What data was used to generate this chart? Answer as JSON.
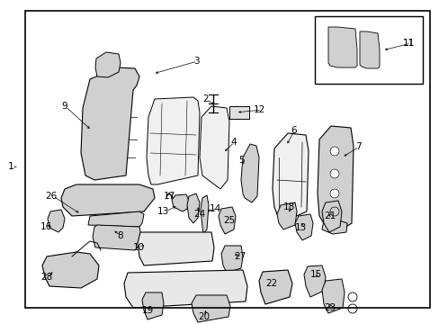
{
  "background_color": "#ffffff",
  "border_color": "#000000",
  "text_color": "#000000",
  "figure_width": 4.89,
  "figure_height": 3.6,
  "dpi": 100,
  "left_label": "1-",
  "line_color": "#000000",
  "gray_fill": "#c8c8c8",
  "light_gray": "#e8e8e8",
  "mid_gray": "#d0d0d0"
}
